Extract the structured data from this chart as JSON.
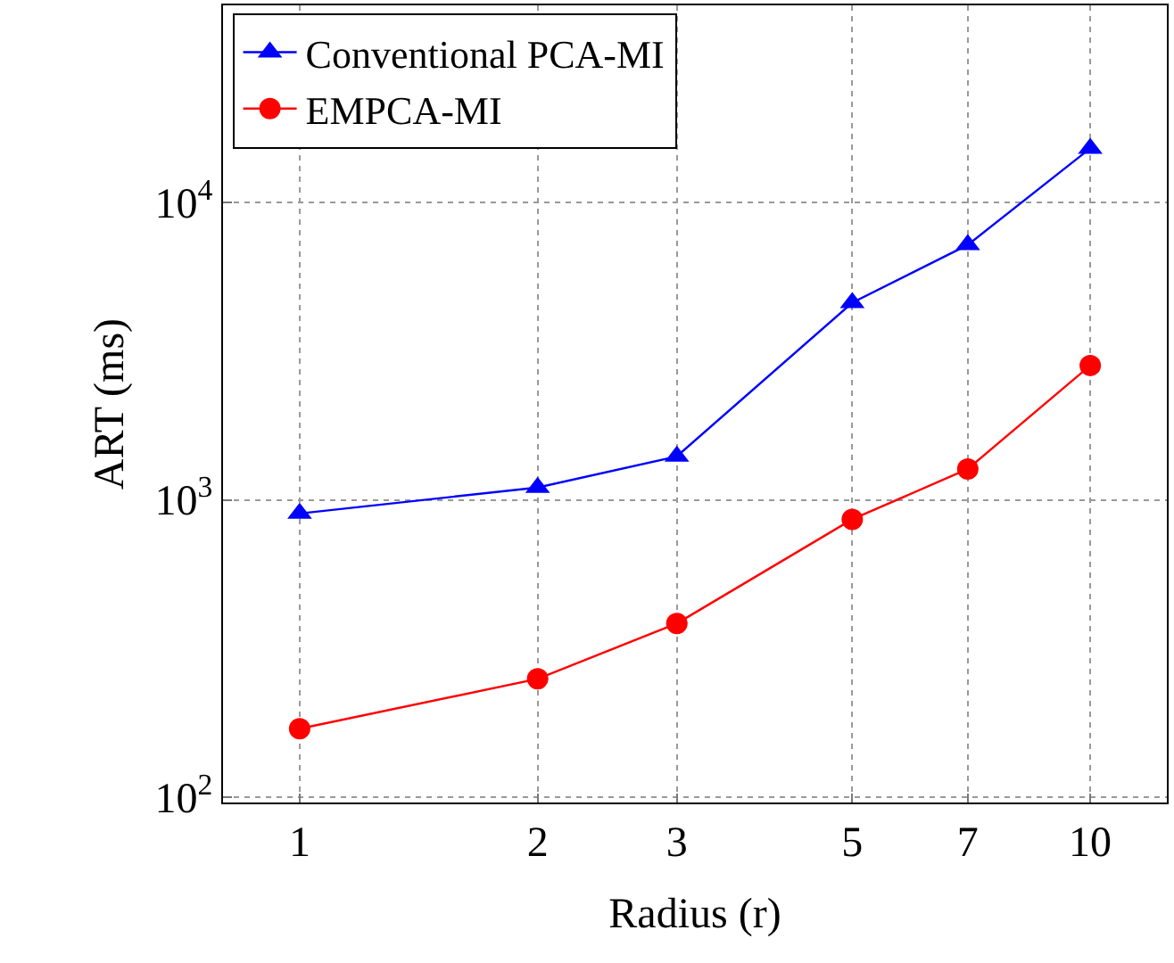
{
  "chart_data": {
    "type": "line",
    "xlabel": "Radius (r)",
    "ylabel": "ART (ms)",
    "x": [
      1,
      2,
      3,
      5,
      7,
      10
    ],
    "series": [
      {
        "name": "Conventional PCA-MI",
        "color": "#0000ff",
        "marker": "triangle",
        "values": [
          900,
          1100,
          1400,
          4600,
          7200,
          15200
        ]
      },
      {
        "name": "EMPCA-MI",
        "color": "#ff0000",
        "marker": "circle",
        "values": [
          170,
          250,
          384,
          860,
          1270,
          2830
        ]
      }
    ],
    "log": "xy",
    "xlim": [
      0.8,
      12.5
    ],
    "xticks": [
      1,
      2,
      3,
      5,
      7,
      10
    ],
    "ylim": [
      96,
      46000
    ],
    "yticks": [
      {
        "value": 100,
        "label": "10$^{2}$"
      },
      {
        "value": 1000,
        "label": "10$^{3}$"
      },
      {
        "value": 10000,
        "label": "10$^{4}$"
      }
    ],
    "grid": true,
    "legend": "top left",
    "line_style": "solid"
  }
}
